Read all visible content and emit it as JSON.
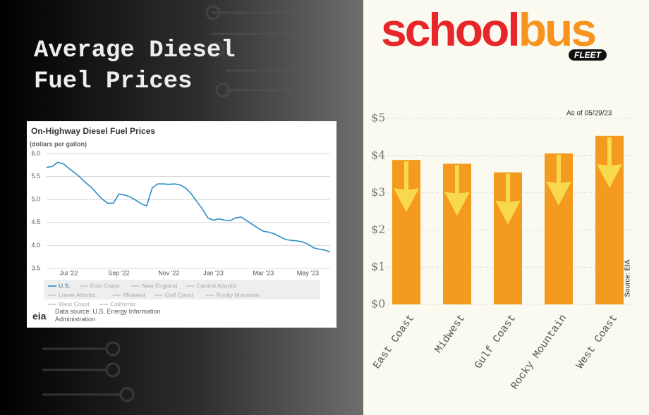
{
  "header": {
    "title": "Average Diesel Fuel Prices",
    "logo_parts": [
      "school",
      "bus"
    ],
    "logo_sub": "FLEET"
  },
  "chart_data": [
    {
      "type": "line",
      "title": "On-Highway Diesel Fuel Prices",
      "subtitle": "(dollars per gallon)",
      "categories": [
        null,
        null,
        null,
        null,
        "Jul '22",
        null,
        null,
        null,
        null,
        null,
        null,
        null,
        null,
        "Sep '22",
        null,
        null,
        null,
        null,
        null,
        null,
        null,
        null,
        "Nov '22",
        null,
        null,
        null,
        null,
        null,
        null,
        null,
        "Jan '23",
        null,
        null,
        null,
        null,
        null,
        null,
        null,
        null,
        "Mar '23",
        null,
        null,
        null,
        null,
        null,
        null,
        null,
        "May '23",
        null,
        null,
        null,
        null
      ],
      "series": [
        {
          "name": "U.S.",
          "color": "#2a8fc4",
          "values": [
            5.7,
            5.72,
            5.81,
            5.78,
            5.68,
            5.59,
            5.49,
            5.37,
            5.27,
            5.14,
            5.01,
            4.92,
            4.92,
            5.12,
            5.1,
            5.06,
            4.99,
            4.91,
            4.86,
            5.25,
            5.34,
            5.34,
            5.33,
            5.34,
            5.32,
            5.25,
            5.13,
            4.96,
            4.8,
            4.6,
            4.55,
            4.58,
            4.55,
            4.54,
            4.6,
            4.62,
            4.54,
            4.46,
            4.38,
            4.31,
            4.29,
            4.25,
            4.19,
            4.13,
            4.11,
            4.1,
            4.08,
            4.03,
            3.95,
            3.92,
            3.9,
            3.86
          ]
        }
      ],
      "inactive_series": [
        {
          "name": "East Coast",
          "color": "#c8c8c8"
        },
        {
          "name": "New England",
          "color": "#c8c8c8"
        },
        {
          "name": "Central Atlantic",
          "color": "#c8c8c8"
        },
        {
          "name": "Lower Atlantic",
          "color": "#c8c8c8"
        },
        {
          "name": "Midwest",
          "color": "#c8c8c8"
        },
        {
          "name": "Gulf Coast",
          "color": "#c8c8c8"
        },
        {
          "name": "Rocky Mountain",
          "color": "#c8c8c8"
        },
        {
          "name": "West Coast",
          "color": "#c8c8c8"
        },
        {
          "name": "California",
          "color": "#c8c8c8"
        }
      ],
      "ylim": [
        3.5,
        6.0
      ],
      "yticks": [
        {
          "value": 3.5,
          "label": "3.5"
        },
        {
          "value": 4.0,
          "label": "4.0"
        },
        {
          "value": 4.5,
          "label": "4.5"
        },
        {
          "value": 5.0,
          "label": "5.0"
        },
        {
          "value": 5.5,
          "label": "5.5"
        },
        {
          "value": 6.0,
          "label": "6.0"
        }
      ],
      "grid": true,
      "logo": "eia",
      "source": "Data source: U.S. Energy Information Administration"
    },
    {
      "type": "bar",
      "annotation": "As of 05/29/23",
      "source": "Source: EIA",
      "categories": [
        "East Coast",
        "Midwest",
        "Gulf Coast",
        "Rocky Mountain",
        "West Coast"
      ],
      "values": [
        3.88,
        3.78,
        3.55,
        4.06,
        4.53
      ],
      "color": "#f39a1f",
      "arrow_color": "#f8d84c",
      "ylim": [
        0,
        5
      ],
      "yticks": [
        {
          "value": 0,
          "label": "$0"
        },
        {
          "value": 1,
          "label": "$1"
        },
        {
          "value": 2,
          "label": "$2"
        },
        {
          "value": 3,
          "label": "$3"
        },
        {
          "value": 4,
          "label": "$4"
        },
        {
          "value": 5,
          "label": "$5"
        }
      ],
      "grid": true
    }
  ]
}
